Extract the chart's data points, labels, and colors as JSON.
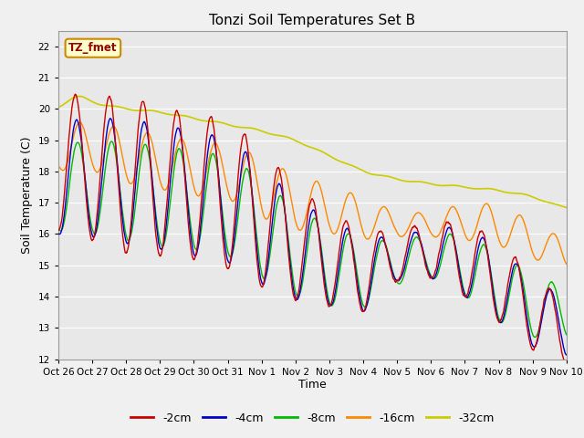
{
  "title": "Tonzi Soil Temperatures Set B",
  "xlabel": "Time",
  "ylabel": "Soil Temperature (C)",
  "ylim": [
    12.0,
    22.5
  ],
  "yticks": [
    12.0,
    13.0,
    14.0,
    15.0,
    16.0,
    17.0,
    18.0,
    19.0,
    20.0,
    21.0,
    22.0
  ],
  "colors": {
    "-2cm": "#cc0000",
    "-4cm": "#0000cc",
    "-8cm": "#00bb00",
    "-16cm": "#ff8800",
    "-32cm": "#cccc00"
  },
  "legend_labels": [
    "-2cm",
    "-4cm",
    "-8cm",
    "-16cm",
    "-32cm"
  ],
  "annotation_text": "TZ_fmet",
  "annotation_bg": "#ffffcc",
  "annotation_border": "#cc8800",
  "plot_bg": "#e8e8e8",
  "fig_bg": "#f0f0f0",
  "grid_color": "#ffffff",
  "xtick_labels": [
    "Oct 26",
    "Oct 27",
    "Oct 28",
    "Oct 29",
    "Oct 30",
    "Oct 31",
    "Nov 1",
    "Nov 2",
    "Nov 3",
    "Nov 4",
    "Nov 5",
    "Nov 6",
    "Nov 7",
    "Nov 8",
    "Nov 9",
    "Nov 10"
  ]
}
